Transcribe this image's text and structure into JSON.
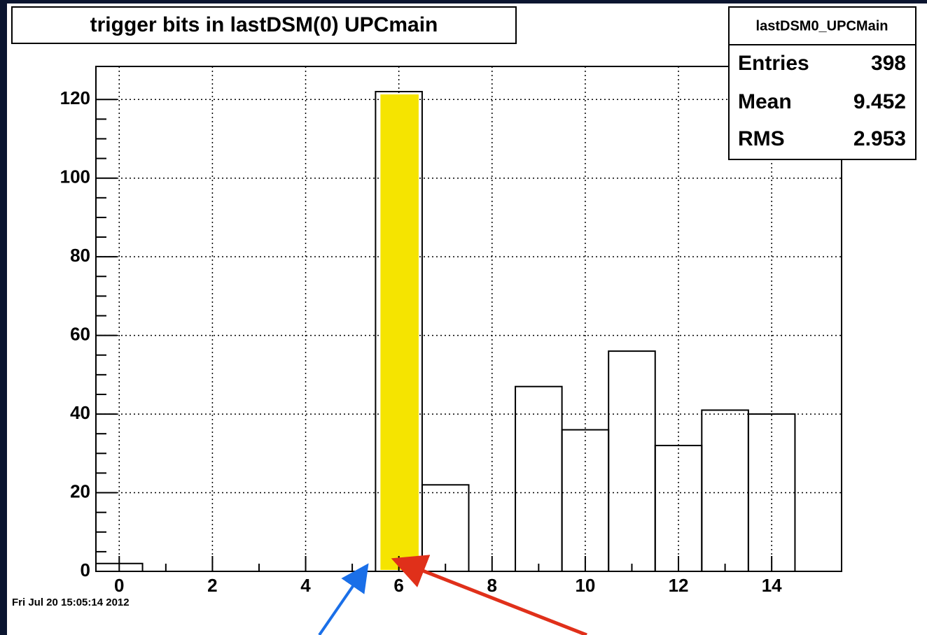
{
  "chart_data": {
    "type": "histogram",
    "title": "trigger bits in lastDSM(0) UPCmain",
    "bins": [
      -0.5,
      0.5,
      1.5,
      2.5,
      3.5,
      4.5,
      5.5,
      6.5,
      7.5,
      8.5,
      9.5,
      10.5,
      11.5,
      12.5,
      13.5,
      14.5,
      15.5
    ],
    "values": [
      2,
      0,
      0,
      0,
      0,
      0,
      122,
      22,
      0,
      47,
      36,
      56,
      32,
      41,
      40,
      0
    ],
    "color": "#000000",
    "highlight_bin": 6,
    "highlight_color": "#f5e400",
    "xlim": [
      -0.5,
      15.5
    ],
    "xticks": [
      0,
      2,
      4,
      6,
      8,
      10,
      12,
      14
    ],
    "ylim": [
      0,
      128.4
    ],
    "yticks": [
      0,
      20,
      40,
      60,
      80,
      100,
      120
    ],
    "grid": true,
    "stats": {
      "name": "lastDSM0_UPCMain",
      "rows": [
        {
          "label": "Entries",
          "value": "398"
        },
        {
          "label": "Mean",
          "value": "9.452"
        },
        {
          "label": "RMS",
          "value": "2.953"
        }
      ]
    },
    "timestamp": "Fri Jul 20 15:05:14 2012"
  }
}
